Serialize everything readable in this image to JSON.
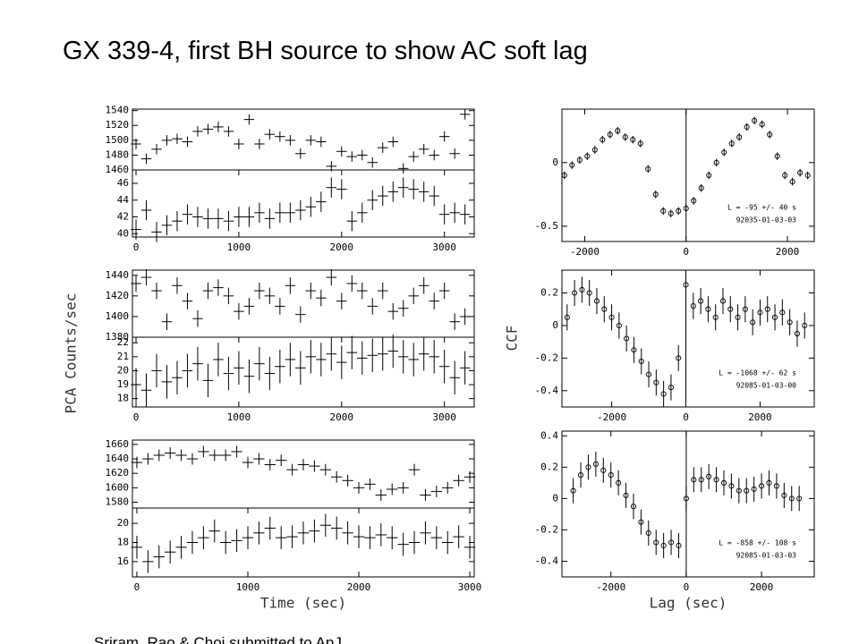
{
  "title": "GX 339-4, first BH source to show AC soft lag",
  "source": "Sriram, Rao & Choi submitted to ApJ",
  "chart_data": [
    {
      "type": "errorbar",
      "marker": "cross",
      "xlim": [
        -35,
        3290
      ],
      "ylim": [
        1460,
        1542
      ],
      "yticks": [
        1460,
        1480,
        1500,
        1520,
        1540
      ],
      "xerr": 50,
      "yerr": 7,
      "x": [
        0,
        100,
        200,
        300,
        400,
        500,
        600,
        700,
        800,
        900,
        1000,
        1100,
        1200,
        1300,
        1400,
        1500,
        1600,
        1700,
        1800,
        1900,
        2000,
        2100,
        2200,
        2300,
        2400,
        2500,
        2600,
        2700,
        2800,
        2900,
        3000,
        3100,
        3200
      ],
      "values": [
        1495,
        1475,
        1488,
        1500,
        1502,
        1498,
        1512,
        1515,
        1518,
        1512,
        1495,
        1528,
        1495,
        1508,
        1505,
        1500,
        1482,
        1500,
        1498,
        1465,
        1485,
        1478,
        1480,
        1470,
        1490,
        1498,
        1462,
        1478,
        1488,
        1480,
        1505,
        1482,
        1535
      ]
    },
    {
      "type": "errorbar",
      "marker": "cross",
      "xlim": [
        -35,
        3290
      ],
      "ylim": [
        39.6,
        47.6
      ],
      "yticks": [
        40,
        42,
        44,
        46
      ],
      "xticks": [
        0,
        1000,
        2000,
        3000
      ],
      "xerr": 50,
      "yerr": 1.2,
      "x": [
        0,
        100,
        200,
        300,
        400,
        500,
        600,
        700,
        800,
        900,
        1000,
        1100,
        1200,
        1300,
        1400,
        1500,
        1600,
        1700,
        1800,
        1900,
        2000,
        2100,
        2200,
        2300,
        2400,
        2500,
        2600,
        2700,
        2800,
        2900,
        3000,
        3100,
        3200
      ],
      "values": [
        40.5,
        42.8,
        40.2,
        41,
        41.5,
        42.3,
        42,
        41.8,
        41.8,
        41.5,
        42,
        42,
        42.5,
        41.8,
        42.5,
        42.5,
        42.8,
        43.2,
        43.8,
        45.5,
        45.3,
        41.5,
        42.5,
        44,
        44.5,
        45,
        45.5,
        45.3,
        45,
        44.5,
        42.3,
        42.5,
        42.3
      ]
    },
    {
      "type": "errorbar",
      "marker": "cross",
      "xlim": [
        -35,
        3290
      ],
      "ylim": [
        1380,
        1445
      ],
      "yticks": [
        1380,
        1400,
        1420,
        1440
      ],
      "xerr": 50,
      "yerr": 8,
      "ylabel": "PCA Counts/sec",
      "x": [
        0,
        100,
        200,
        300,
        400,
        500,
        600,
        700,
        800,
        900,
        1000,
        1100,
        1200,
        1300,
        1400,
        1500,
        1600,
        1700,
        1800,
        1900,
        2000,
        2100,
        2200,
        2300,
        2400,
        2500,
        2600,
        2700,
        2800,
        2900,
        3000,
        3100,
        3200
      ],
      "values": [
        1432,
        1438,
        1425,
        1395,
        1430,
        1415,
        1398,
        1425,
        1428,
        1420,
        1405,
        1410,
        1425,
        1420,
        1410,
        1430,
        1402,
        1425,
        1418,
        1438,
        1415,
        1432,
        1425,
        1410,
        1425,
        1405,
        1408,
        1420,
        1430,
        1415,
        1425,
        1395,
        1400
      ]
    },
    {
      "type": "errorbar",
      "marker": "cross",
      "xlim": [
        -35,
        3290
      ],
      "ylim": [
        17.4,
        22.4
      ],
      "yticks": [
        18,
        19,
        20,
        21,
        22
      ],
      "xticks": [
        0,
        1000,
        2000,
        3000
      ],
      "xerr": 50,
      "yerr": 1.2,
      "x": [
        0,
        100,
        200,
        300,
        400,
        500,
        600,
        700,
        800,
        900,
        1000,
        1100,
        1200,
        1300,
        1400,
        1500,
        1600,
        1700,
        1800,
        1900,
        2000,
        2100,
        2200,
        2300,
        2400,
        2500,
        2600,
        2700,
        2800,
        2900,
        3000,
        3100,
        3200
      ],
      "values": [
        19,
        18.6,
        20,
        19.2,
        19.5,
        20,
        20.5,
        19.3,
        20.8,
        19.8,
        20.2,
        19.6,
        20.5,
        19.8,
        20.3,
        20.8,
        20.2,
        21,
        20.8,
        21.2,
        20.6,
        21.3,
        20.9,
        21.1,
        21.2,
        21.4,
        21,
        20.8,
        21.2,
        21,
        20.3,
        19.5,
        20.2
      ]
    },
    {
      "type": "errorbar",
      "marker": "cross",
      "xlim": [
        -40,
        3040
      ],
      "ylim": [
        1572,
        1666
      ],
      "yticks": [
        1580,
        1600,
        1620,
        1640,
        1660
      ],
      "xerr": 50,
      "yerr": 8,
      "x": [
        0,
        100,
        200,
        300,
        400,
        500,
        600,
        700,
        800,
        900,
        1000,
        1100,
        1200,
        1300,
        1400,
        1500,
        1600,
        1700,
        1800,
        1900,
        2000,
        2100,
        2200,
        2300,
        2400,
        2500,
        2600,
        2700,
        2800,
        2900,
        3000
      ],
      "values": [
        1635,
        1640,
        1645,
        1648,
        1645,
        1640,
        1650,
        1645,
        1645,
        1650,
        1635,
        1640,
        1632,
        1638,
        1625,
        1632,
        1630,
        1625,
        1615,
        1610,
        1600,
        1605,
        1590,
        1598,
        1600,
        1625,
        1590,
        1595,
        1600,
        1610,
        1615
      ]
    },
    {
      "type": "errorbar",
      "marker": "cross",
      "xlim": [
        -40,
        3040
      ],
      "ylim": [
        14.4,
        21.6
      ],
      "yticks": [
        16,
        18,
        20
      ],
      "xticks": [
        0,
        1000,
        2000,
        3000
      ],
      "xerr": 50,
      "yerr": 1.2,
      "xlabel": "Time (sec)",
      "x": [
        0,
        100,
        200,
        300,
        400,
        500,
        600,
        700,
        800,
        900,
        1000,
        1100,
        1200,
        1300,
        1400,
        1500,
        1600,
        1700,
        1800,
        1900,
        2000,
        2100,
        2200,
        2300,
        2400,
        2500,
        2600,
        2700,
        2800,
        2900,
        3000
      ],
      "values": [
        17.5,
        16,
        16.5,
        17,
        17.5,
        18,
        18.5,
        19.2,
        18,
        18.2,
        18.5,
        19,
        19.5,
        18.5,
        18.6,
        19,
        19.2,
        19.8,
        19.5,
        19,
        18.6,
        18.5,
        18.8,
        18.5,
        17.8,
        18,
        19,
        18.5,
        18,
        18.6,
        17.5
      ]
    },
    {
      "type": "errorbar",
      "marker": "circle",
      "xlim": [
        -2450,
        2530
      ],
      "ylim": [
        -0.62,
        0.42
      ],
      "yticks": [
        0,
        -0.5
      ],
      "xticks": [
        -2000,
        0,
        2000
      ],
      "yerr": 0.03,
      "annotations": [
        "L = -95 +/- 40 s",
        "92035-01-03-03"
      ],
      "x": [
        -2400,
        -2250,
        -2100,
        -1950,
        -1800,
        -1650,
        -1500,
        -1350,
        -1200,
        -1050,
        -900,
        -750,
        -600,
        -450,
        -300,
        -150,
        0,
        150,
        300,
        450,
        600,
        750,
        900,
        1050,
        1200,
        1350,
        1500,
        1650,
        1800,
        1950,
        2100,
        2250,
        2400
      ],
      "values": [
        -0.1,
        -0.02,
        0.02,
        0.05,
        0.1,
        0.18,
        0.22,
        0.25,
        0.2,
        0.18,
        0.15,
        -0.05,
        -0.25,
        -0.38,
        -0.4,
        -0.38,
        -0.36,
        -0.3,
        -0.2,
        -0.1,
        0,
        0.08,
        0.15,
        0.2,
        0.28,
        0.33,
        0.3,
        0.22,
        0.05,
        -0.1,
        -0.15,
        -0.08,
        -0.1
      ]
    },
    {
      "type": "errorbar",
      "marker": "circle",
      "xlim": [
        -3340,
        3460
      ],
      "ylim": [
        -0.5,
        0.34
      ],
      "yticks": [
        0.2,
        0,
        -0.2,
        -0.4
      ],
      "xticks": [
        -2000,
        0,
        2000
      ],
      "yerr": 0.08,
      "ylabel": "CCF",
      "annotations": [
        "L = -1068 +/- 62 s",
        "92085-01-03-00"
      ],
      "x": [
        -3200,
        -3000,
        -2800,
        -2600,
        -2400,
        -2200,
        -2000,
        -1800,
        -1600,
        -1400,
        -1200,
        -1000,
        -800,
        -600,
        -400,
        -200,
        0,
        200,
        400,
        600,
        800,
        1000,
        1200,
        1400,
        1600,
        1800,
        2000,
        2200,
        2400,
        2600,
        2800,
        3000,
        3200
      ],
      "values": [
        0.05,
        0.2,
        0.22,
        0.2,
        0.15,
        0.1,
        0.05,
        0,
        -0.08,
        -0.15,
        -0.22,
        -0.3,
        -0.35,
        -0.42,
        -0.38,
        -0.2,
        0.25,
        0.12,
        0.15,
        0.1,
        0.05,
        0.15,
        0.1,
        0.05,
        0.1,
        0.02,
        0.08,
        0.1,
        0.05,
        0.08,
        0.02,
        -0.05,
        0
      ]
    },
    {
      "type": "errorbar",
      "marker": "circle",
      "xlim": [
        -3300,
        3400
      ],
      "ylim": [
        -0.5,
        0.43
      ],
      "yticks": [
        0.4,
        0.2,
        0,
        -0.2,
        -0.4
      ],
      "xticks": [
        -2000,
        0,
        2000
      ],
      "yerr": 0.08,
      "xlabel": "Lag (sec)",
      "annotations": [
        "L = -858 +/- 108 s",
        "92085-01-03-03"
      ],
      "x": [
        -3000,
        -2800,
        -2600,
        -2400,
        -2200,
        -2000,
        -1800,
        -1600,
        -1400,
        -1200,
        -1000,
        -800,
        -600,
        -400,
        -200,
        0,
        200,
        400,
        600,
        800,
        1000,
        1200,
        1400,
        1600,
        1800,
        2000,
        2200,
        2400,
        2600,
        2800,
        3000
      ],
      "values": [
        0.05,
        0.15,
        0.2,
        0.22,
        0.18,
        0.15,
        0.1,
        0.02,
        -0.05,
        -0.15,
        -0.22,
        -0.28,
        -0.3,
        -0.28,
        -0.3,
        0,
        0.12,
        0.12,
        0.14,
        0.12,
        0.1,
        0.08,
        0.05,
        0.05,
        0.06,
        0.08,
        0.1,
        0.08,
        0.02,
        0,
        0
      ]
    }
  ]
}
